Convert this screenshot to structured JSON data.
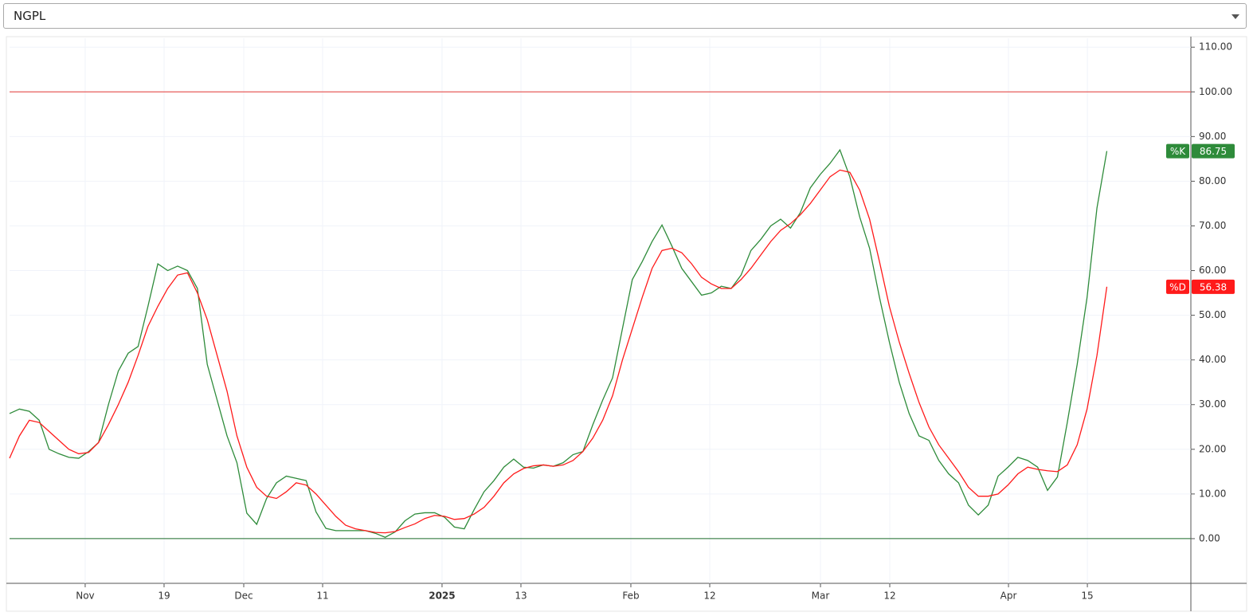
{
  "symbol_select": "NGPL",
  "chart_data": {
    "type": "line",
    "series": [
      {
        "name": "%K",
        "color": "#2e8b3a",
        "values": [
          28,
          29,
          28.5,
          26.5,
          20,
          19,
          18.2,
          18,
          19.5,
          21.5,
          30,
          37.5,
          41.5,
          43,
          52,
          61.5,
          60,
          61,
          60,
          56,
          39,
          31,
          23,
          17,
          5.7,
          3.2,
          9,
          12.5,
          14,
          13.5,
          13,
          6,
          2.3,
          1.8,
          1.8,
          1.8,
          1.8,
          1.2,
          0.3,
          1.5,
          4,
          5.5,
          5.8,
          5.8,
          4.8,
          2.6,
          2.2,
          6.5,
          10.5,
          13,
          16,
          17.8,
          16,
          15.8,
          16.5,
          16.2,
          17,
          18.8,
          19.5,
          25.5,
          31,
          36,
          47,
          58,
          62,
          66.5,
          70.2,
          65.5,
          60.5,
          57.5,
          54.5,
          55,
          56.5,
          56,
          59,
          64.5,
          67,
          70,
          71.5,
          69.5,
          73,
          78.5,
          81.5,
          84,
          87,
          81,
          72,
          65,
          54,
          44,
          35,
          28,
          23,
          22,
          17.5,
          14.5,
          12.5,
          7.5,
          5.3,
          7.5,
          14,
          16,
          18.2,
          17.5,
          16,
          10.8,
          13.8,
          26,
          39,
          54,
          74,
          86.75
        ]
      },
      {
        "name": "%D",
        "color": "#ff1a1a",
        "values": [
          18,
          23,
          26.5,
          26,
          24,
          22,
          20,
          19,
          19.3,
          21.5,
          25.5,
          30,
          35,
          41,
          47.5,
          52,
          56,
          59,
          59.5,
          55,
          49,
          41,
          33,
          23,
          16,
          11.5,
          9.5,
          9,
          10.5,
          12.5,
          12,
          10,
          7.5,
          5,
          3,
          2.2,
          1.8,
          1.4,
          1.3,
          1.6,
          2.5,
          3.3,
          4.5,
          5.2,
          5,
          4.3,
          4.5,
          5.5,
          7,
          9.5,
          12.5,
          14.5,
          15.7,
          16.3,
          16.5,
          16.2,
          16.5,
          17.5,
          19.5,
          22.5,
          26.5,
          32,
          40,
          47,
          54,
          60.5,
          64.5,
          65,
          64,
          61.5,
          58.5,
          57,
          56,
          56,
          58,
          60.5,
          63.5,
          66.5,
          69,
          70.5,
          72.5,
          75,
          78,
          81,
          82.5,
          82,
          78,
          71.5,
          62,
          52,
          44,
          37,
          30.5,
          25,
          21,
          18,
          15,
          11.5,
          9.5,
          9.5,
          10,
          12,
          14.5,
          16,
          15.5,
          15.2,
          15,
          16.5,
          21,
          29,
          41,
          56.38
        ]
      }
    ],
    "hlines": [
      {
        "value": 100,
        "color": "#e53935"
      },
      {
        "value": 0,
        "color": "#1e6b2a"
      }
    ],
    "xlim": [
      0,
      119.5
    ],
    "xticks": [
      {
        "value": 7.65,
        "label": "Nov"
      },
      {
        "value": 15.63,
        "label": "19"
      },
      {
        "value": 23.69,
        "label": "Dec"
      },
      {
        "value": 31.67,
        "label": "11"
      },
      {
        "value": 43.75,
        "label": "2025"
      },
      {
        "value": 51.73,
        "label": "13"
      },
      {
        "value": 62.85,
        "label": "Feb"
      },
      {
        "value": 70.83,
        "label": "12"
      },
      {
        "value": 82.03,
        "label": "Mar"
      },
      {
        "value": 89.04,
        "label": "12"
      },
      {
        "value": 101.05,
        "label": "Apr"
      },
      {
        "value": 109.03,
        "label": "15"
      }
    ],
    "ylim": [
      -10,
      112
    ],
    "yticks": [
      {
        "value": 0,
        "label": "0.00"
      },
      {
        "value": 10,
        "label": "10.00"
      },
      {
        "value": 20,
        "label": "20.00"
      },
      {
        "value": 30,
        "label": "30.00"
      },
      {
        "value": 40,
        "label": "40.00"
      },
      {
        "value": 50,
        "label": "50.00"
      },
      {
        "value": 60,
        "label": "60.00"
      },
      {
        "value": 70,
        "label": "70.00"
      },
      {
        "value": 80,
        "label": "80.00"
      },
      {
        "value": 90,
        "label": "90.00"
      },
      {
        "value": 100,
        "label": "100.00"
      },
      {
        "value": 110,
        "label": "110.00"
      }
    ],
    "grid": true
  }
}
